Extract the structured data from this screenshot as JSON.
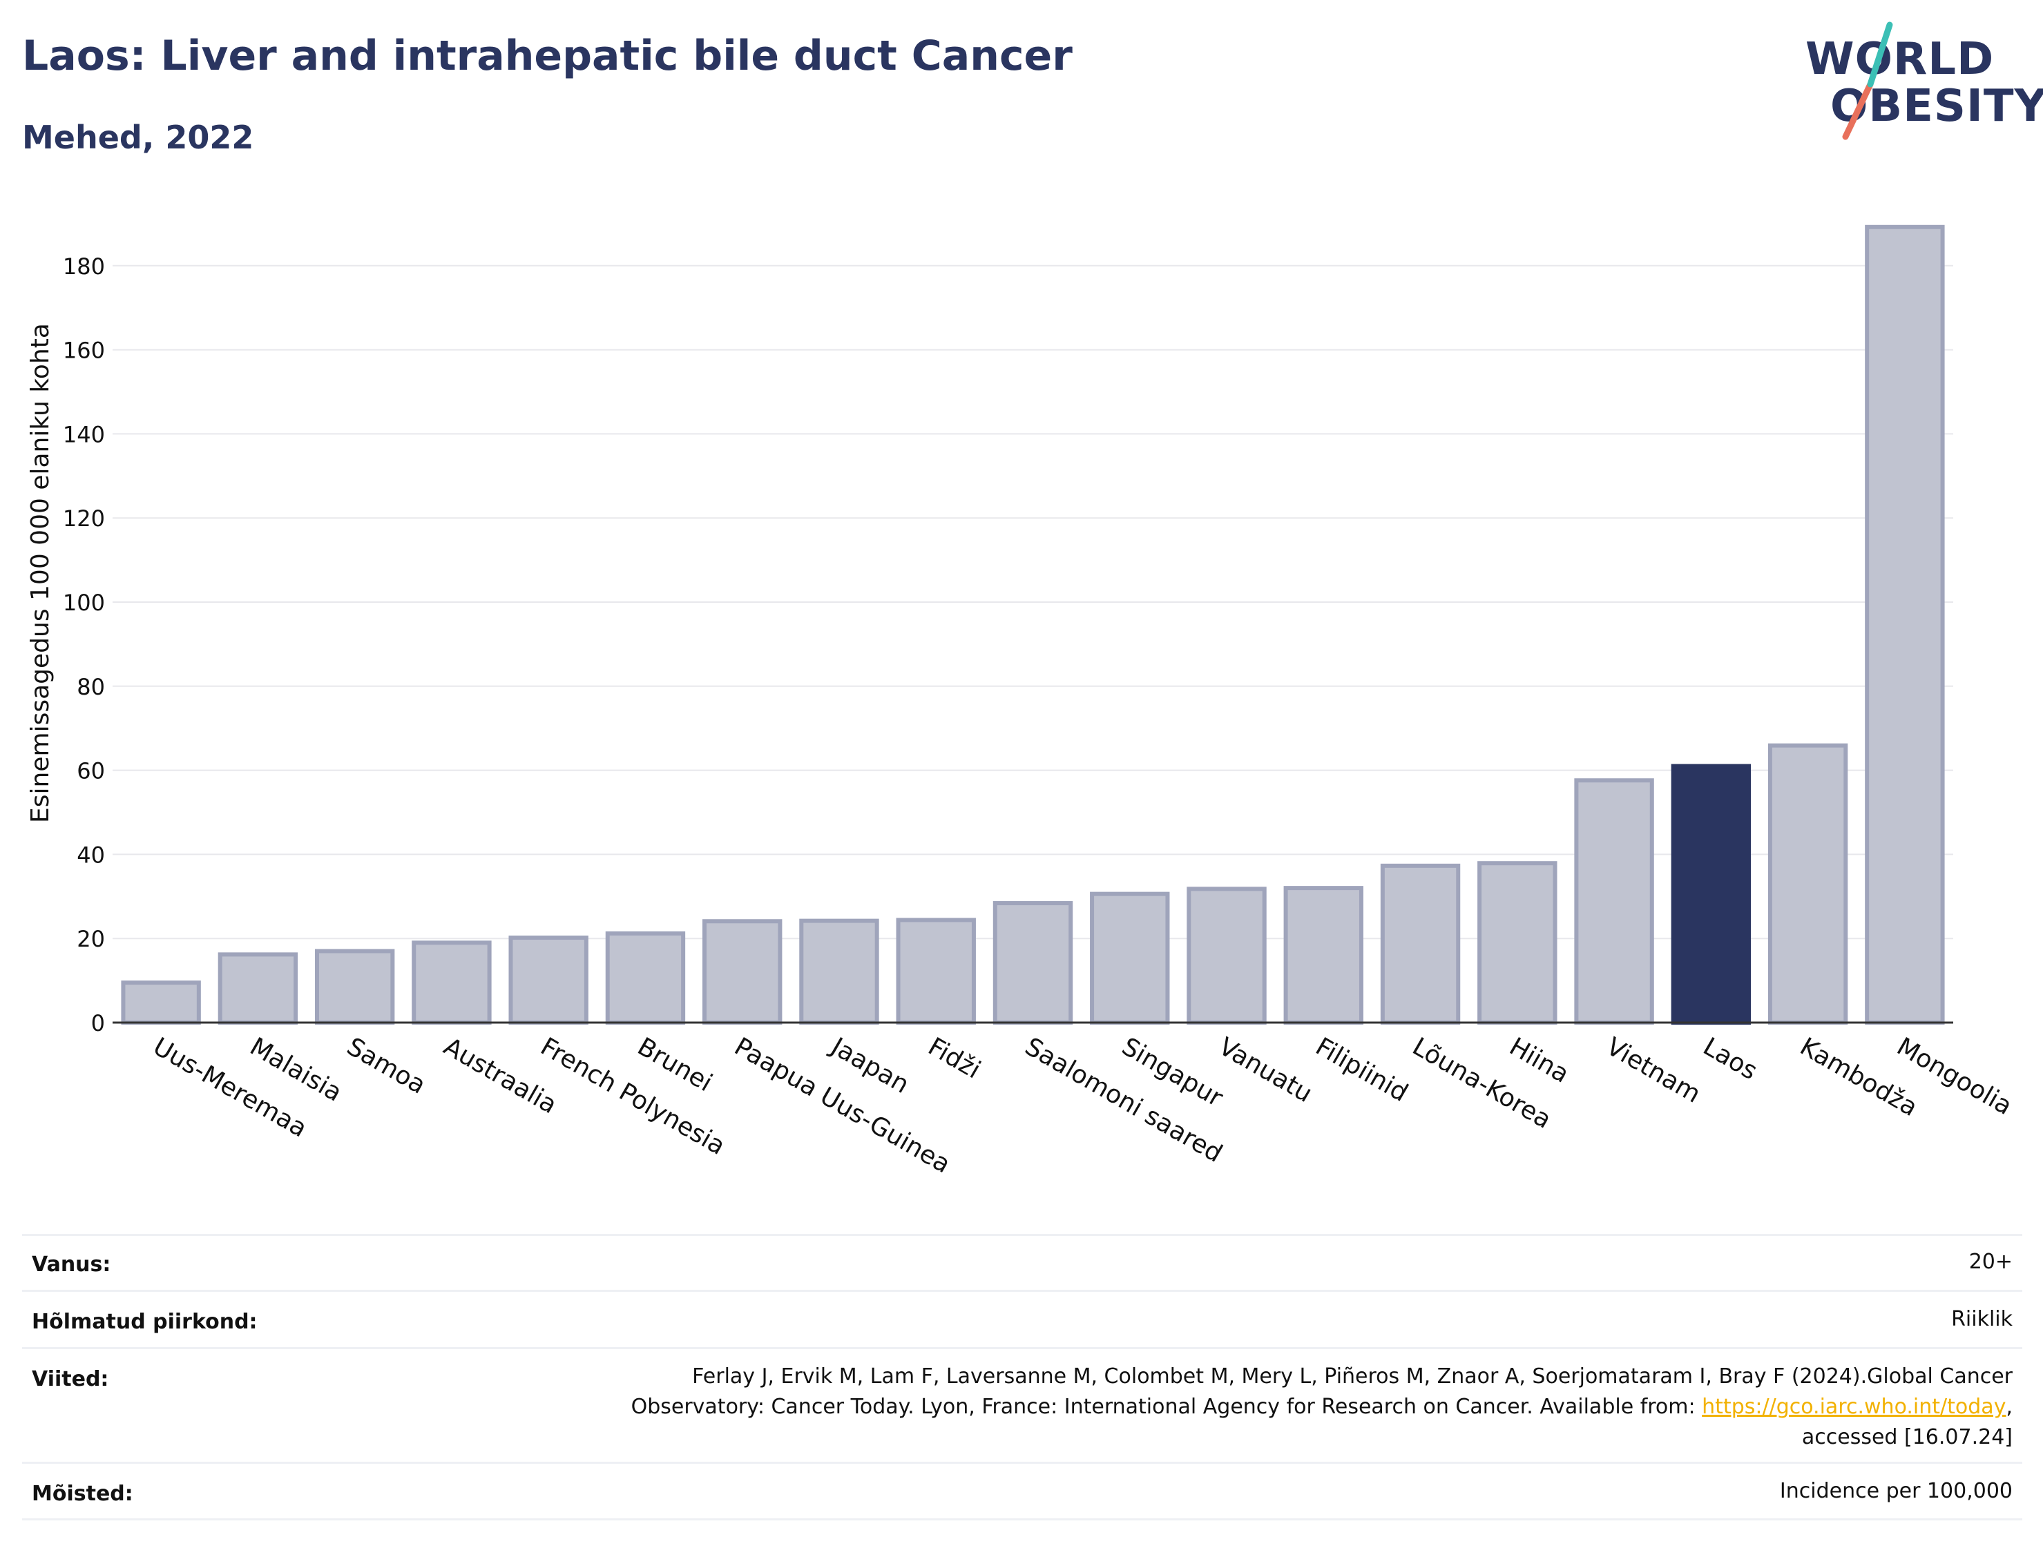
{
  "header": {
    "title": "Laos: Liver and intrahepatic bile duct Cancer",
    "subtitle": "Mehed, 2022",
    "logo_line1": "WORLD",
    "logo_line2": "OBESITY"
  },
  "colors": {
    "title": "#2a3560",
    "bar": "#c0c3d0",
    "bar_border": "#9fa4bb",
    "highlight": "#2a3560",
    "grid": "#e8e8ec",
    "link": "#f2b100",
    "logo_teal": "#3bbfb5",
    "logo_red": "#e8705b"
  },
  "chart_data": {
    "type": "bar",
    "ylabel": "Esinemissagedus 100 000 elaniku kohta",
    "xlabel": "",
    "ylim": [
      0,
      190
    ],
    "yticks": [
      0,
      20,
      40,
      60,
      80,
      100,
      120,
      140,
      160,
      180
    ],
    "grid": true,
    "highlight_category": "Laos",
    "categories": [
      "Uus-Meremaa",
      "Malaisia",
      "Samoa",
      "Austraalia",
      "French Polynesia",
      "Brunei",
      "Paapua Uus-Guinea",
      "Jaapan",
      "Fidži",
      "Saalomoni saared",
      "Singapur",
      "Vanuatu",
      "Filipiinid",
      "Lõuna-Korea",
      "Hiina",
      "Vietnam",
      "Laos",
      "Kambodža",
      "Mongoolia"
    ],
    "values": [
      9.5,
      16.2,
      17,
      19,
      20.2,
      21.2,
      24.1,
      24.2,
      24.4,
      28.4,
      30.6,
      31.8,
      32,
      37.3,
      37.9,
      57.6,
      61,
      65.9,
      189.2
    ]
  },
  "meta": [
    {
      "label": "Vanus:",
      "value": "20+"
    },
    {
      "label": "Hõlmatud piirkond:",
      "value": "Riiklik"
    },
    {
      "label": "Viited:",
      "line1": "Ferlay J, Ervik M, Lam F, Laversanne M, Colombet M, Mery L, Piñeros M, Znaor A, Soerjomataram I, Bray F (2024).Global Cancer",
      "line2_pre": "Observatory: Cancer Today. Lyon, France: International Agency for Research on Cancer. Available from: ",
      "link": "https://gco.iarc.who.int/today",
      "line2_post": ",",
      "line3": "accessed [16.07.24]"
    },
    {
      "label": "Mõisted:",
      "value": "Incidence per 100,000"
    }
  ]
}
